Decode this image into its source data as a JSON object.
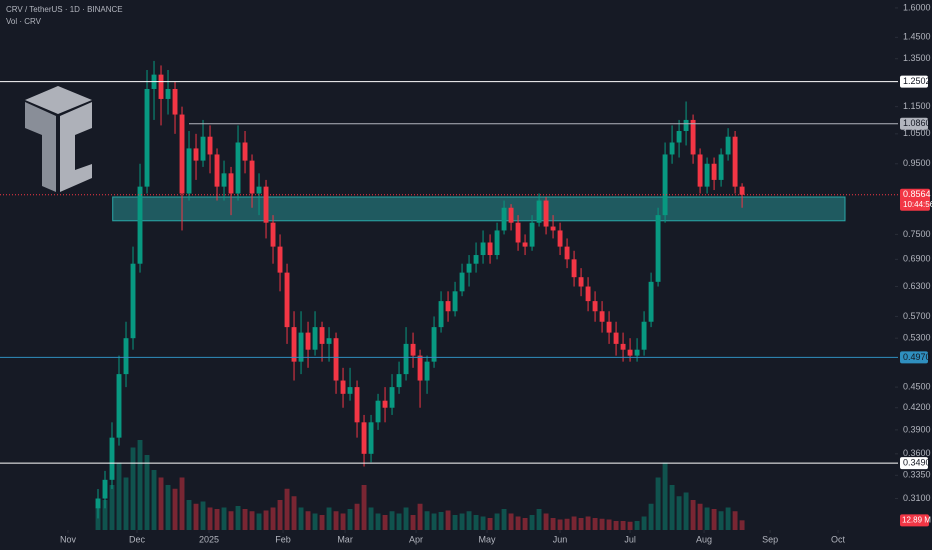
{
  "chart_data": {
    "type": "candlestick",
    "title": "CRV / TetherUS · 1D · BINANCE",
    "subtitle": "Vol · CRV",
    "log_scale": true,
    "grid": false,
    "up_color": "#089981",
    "down_color": "#f23645",
    "xlim": [
      -14,
      111.7
    ],
    "xticks": [
      {
        "value": -4.29,
        "label": "Nov"
      },
      {
        "value": 5.57,
        "label": "Dec"
      },
      {
        "value": 15.86,
        "label": "2025"
      },
      {
        "value": 26.43,
        "label": "Feb"
      },
      {
        "value": 35.29,
        "label": "Mar"
      },
      {
        "value": 45.43,
        "label": "Apr"
      },
      {
        "value": 55.57,
        "label": "May"
      },
      {
        "value": 66,
        "label": "Jun"
      },
      {
        "value": 76,
        "label": "Jul"
      },
      {
        "value": 86.57,
        "label": "Aug"
      },
      {
        "value": 96,
        "label": "Sep"
      },
      {
        "value": 105.71,
        "label": "Oct"
      }
    ],
    "ylim": [
      0.279,
      1.643
    ],
    "yticks": [
      {
        "value": 1.6,
        "label": "1.6000"
      },
      {
        "value": 1.45,
        "label": "1.4500"
      },
      {
        "value": 1.35,
        "label": "1.3500"
      },
      {
        "value": 1.15,
        "label": "1.1500"
      },
      {
        "value": 1.05,
        "label": "1.0500"
      },
      {
        "value": 0.95,
        "label": "0.9500"
      },
      {
        "value": 0.75,
        "label": "0.7500"
      },
      {
        "value": 0.69,
        "label": "0.6900"
      },
      {
        "value": 0.63,
        "label": "0.6300"
      },
      {
        "value": 0.57,
        "label": "0.5700"
      },
      {
        "value": 0.53,
        "label": "0.5300"
      },
      {
        "value": 0.45,
        "label": "0.4500"
      },
      {
        "value": 0.42,
        "label": "0.4200"
      },
      {
        "value": 0.39,
        "label": "0.3900"
      },
      {
        "value": 0.36,
        "label": "0.3600"
      },
      {
        "value": 0.335,
        "label": "0.3350"
      },
      {
        "value": 0.31,
        "label": "0.3100"
      }
    ],
    "levels": [
      {
        "value": 1.2502,
        "label": "1.2502",
        "color": "#ffffff",
        "from": -14
      },
      {
        "value": 1.086,
        "label": "1.0860",
        "color": "#b2b5be",
        "from": 13
      },
      {
        "value": 0.497,
        "label": "0.4970",
        "color": "#2f8fbf",
        "from": -14
      },
      {
        "value": 0.349,
        "label": "0.3490",
        "color": "#ffffff",
        "from": -14
      }
    ],
    "zone": {
      "low": 0.785,
      "high": 0.85,
      "from": 2.1,
      "to": 106.7,
      "color": "#2aa8a8"
    },
    "last_price": {
      "value": 0.8564,
      "label": "0.8564",
      "countdown": "10:44:56"
    },
    "volume_lim": [
      0,
      140
    ],
    "volume_last_label": "12.89 M",
    "candles": [
      [
        0.3,
        0.32,
        0.29,
        0.31
      ],
      [
        0.31,
        0.34,
        0.3,
        0.33
      ],
      [
        0.33,
        0.4,
        0.32,
        0.38
      ],
      [
        0.38,
        0.5,
        0.37,
        0.47
      ],
      [
        0.47,
        0.56,
        0.45,
        0.53
      ],
      [
        0.53,
        0.72,
        0.51,
        0.68
      ],
      [
        0.68,
        0.95,
        0.66,
        0.88
      ],
      [
        0.88,
        1.3,
        0.86,
        1.22
      ],
      [
        1.22,
        1.34,
        1.1,
        1.28
      ],
      [
        1.28,
        1.32,
        1.08,
        1.18
      ],
      [
        1.18,
        1.3,
        1.12,
        1.22
      ],
      [
        1.22,
        1.25,
        1.05,
        1.12
      ],
      [
        1.12,
        1.15,
        0.76,
        0.86
      ],
      [
        0.86,
        1.06,
        0.84,
        1.0
      ],
      [
        1.0,
        1.05,
        0.9,
        0.96
      ],
      [
        0.96,
        1.1,
        0.94,
        1.04
      ],
      [
        1.04,
        1.08,
        0.92,
        0.98
      ],
      [
        0.98,
        1.0,
        0.84,
        0.88
      ],
      [
        0.88,
        0.96,
        0.84,
        0.92
      ],
      [
        0.92,
        0.94,
        0.8,
        0.86
      ],
      [
        0.86,
        1.08,
        0.84,
        1.02
      ],
      [
        1.02,
        1.06,
        0.92,
        0.96
      ],
      [
        0.96,
        0.98,
        0.82,
        0.86
      ],
      [
        0.86,
        0.92,
        0.8,
        0.88
      ],
      [
        0.88,
        0.9,
        0.74,
        0.78
      ],
      [
        0.78,
        0.8,
        0.68,
        0.72
      ],
      [
        0.72,
        0.75,
        0.62,
        0.66
      ],
      [
        0.66,
        0.68,
        0.52,
        0.55
      ],
      [
        0.55,
        0.58,
        0.46,
        0.49
      ],
      [
        0.49,
        0.58,
        0.47,
        0.54
      ],
      [
        0.54,
        0.56,
        0.48,
        0.51
      ],
      [
        0.51,
        0.58,
        0.5,
        0.55
      ],
      [
        0.55,
        0.56,
        0.49,
        0.52
      ],
      [
        0.52,
        0.55,
        0.49,
        0.53
      ],
      [
        0.53,
        0.54,
        0.44,
        0.46
      ],
      [
        0.46,
        0.48,
        0.42,
        0.44
      ],
      [
        0.44,
        0.48,
        0.43,
        0.45
      ],
      [
        0.45,
        0.46,
        0.38,
        0.4
      ],
      [
        0.4,
        0.41,
        0.345,
        0.36
      ],
      [
        0.36,
        0.41,
        0.35,
        0.4
      ],
      [
        0.4,
        0.44,
        0.39,
        0.43
      ],
      [
        0.43,
        0.45,
        0.4,
        0.42
      ],
      [
        0.42,
        0.47,
        0.41,
        0.45
      ],
      [
        0.45,
        0.49,
        0.44,
        0.47
      ],
      [
        0.47,
        0.55,
        0.46,
        0.52
      ],
      [
        0.52,
        0.54,
        0.48,
        0.5
      ],
      [
        0.5,
        0.51,
        0.42,
        0.46
      ],
      [
        0.46,
        0.5,
        0.44,
        0.49
      ],
      [
        0.49,
        0.57,
        0.48,
        0.55
      ],
      [
        0.55,
        0.62,
        0.54,
        0.6
      ],
      [
        0.6,
        0.62,
        0.56,
        0.58
      ],
      [
        0.58,
        0.64,
        0.57,
        0.62
      ],
      [
        0.62,
        0.68,
        0.61,
        0.66
      ],
      [
        0.66,
        0.7,
        0.63,
        0.68
      ],
      [
        0.68,
        0.73,
        0.66,
        0.7
      ],
      [
        0.7,
        0.76,
        0.68,
        0.73
      ],
      [
        0.73,
        0.75,
        0.68,
        0.7
      ],
      [
        0.7,
        0.78,
        0.69,
        0.76
      ],
      [
        0.76,
        0.84,
        0.75,
        0.82
      ],
      [
        0.82,
        0.83,
        0.76,
        0.78
      ],
      [
        0.78,
        0.8,
        0.71,
        0.73
      ],
      [
        0.73,
        0.75,
        0.7,
        0.72
      ],
      [
        0.72,
        0.8,
        0.71,
        0.78
      ],
      [
        0.78,
        0.86,
        0.77,
        0.84
      ],
      [
        0.84,
        0.85,
        0.75,
        0.77
      ],
      [
        0.77,
        0.8,
        0.74,
        0.76
      ],
      [
        0.76,
        0.78,
        0.7,
        0.72
      ],
      [
        0.72,
        0.74,
        0.67,
        0.69
      ],
      [
        0.69,
        0.71,
        0.63,
        0.65
      ],
      [
        0.65,
        0.67,
        0.61,
        0.63
      ],
      [
        0.63,
        0.65,
        0.58,
        0.6
      ],
      [
        0.6,
        0.62,
        0.56,
        0.58
      ],
      [
        0.58,
        0.6,
        0.54,
        0.56
      ],
      [
        0.56,
        0.58,
        0.52,
        0.54
      ],
      [
        0.54,
        0.56,
        0.5,
        0.52
      ],
      [
        0.52,
        0.54,
        0.49,
        0.51
      ],
      [
        0.51,
        0.53,
        0.49,
        0.5
      ],
      [
        0.5,
        0.53,
        0.49,
        0.51
      ],
      [
        0.51,
        0.58,
        0.5,
        0.56
      ],
      [
        0.56,
        0.66,
        0.55,
        0.64
      ],
      [
        0.64,
        0.82,
        0.63,
        0.8
      ],
      [
        0.8,
        1.02,
        0.78,
        0.98
      ],
      [
        0.98,
        1.08,
        0.95,
        1.02
      ],
      [
        1.02,
        1.1,
        0.97,
        1.06
      ],
      [
        1.06,
        1.17,
        1.01,
        1.1
      ],
      [
        1.1,
        1.12,
        0.95,
        0.98
      ],
      [
        0.98,
        1.0,
        0.86,
        0.88
      ],
      [
        0.88,
        0.97,
        0.86,
        0.95
      ],
      [
        0.95,
        0.97,
        0.87,
        0.9
      ],
      [
        0.9,
        1.0,
        0.88,
        0.98
      ],
      [
        0.98,
        1.07,
        0.96,
        1.04
      ],
      [
        1.04,
        1.06,
        0.86,
        0.88
      ],
      [
        0.88,
        0.89,
        0.82,
        0.8564
      ]
    ],
    "volume": [
      30,
      40,
      60,
      90,
      70,
      110,
      120,
      100,
      80,
      70,
      60,
      55,
      70,
      40,
      35,
      38,
      30,
      28,
      30,
      25,
      32,
      28,
      25,
      22,
      26,
      30,
      40,
      55,
      45,
      30,
      25,
      22,
      20,
      30,
      25,
      22,
      28,
      35,
      60,
      30,
      22,
      20,
      25,
      22,
      30,
      20,
      35,
      25,
      22,
      24,
      26,
      20,
      22,
      25,
      20,
      18,
      16,
      22,
      28,
      22,
      18,
      16,
      20,
      28,
      22,
      16,
      14,
      15,
      18,
      16,
      18,
      16,
      15,
      14,
      12,
      12,
      11,
      12,
      18,
      35,
      70,
      90,
      60,
      45,
      50,
      40,
      35,
      30,
      28,
      25,
      30,
      25,
      12.89
    ]
  }
}
